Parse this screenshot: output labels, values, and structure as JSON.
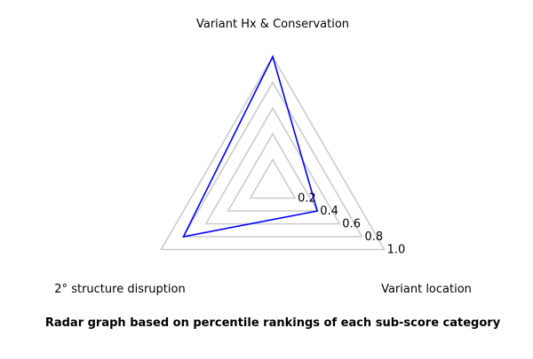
{
  "chart_data": {
    "type": "radar",
    "axes": [
      "Variant Hx & Conservation",
      "Variant location",
      "2° structure disruption"
    ],
    "series": [
      {
        "values": [
          1.0,
          0.4,
          0.8
        ],
        "color": "#0000ff"
      }
    ],
    "radial_ticks": [
      "0.2",
      "0.4",
      "0.6",
      "0.8",
      "1.0"
    ],
    "radial_tick_values": [
      0.2,
      0.4,
      0.6,
      0.8,
      1.0
    ],
    "rlim": [
      0,
      1.0
    ],
    "grid": true,
    "grid_color": "#cccccc"
  },
  "caption": "Radar graph based on percentile rankings of each sub-score category"
}
